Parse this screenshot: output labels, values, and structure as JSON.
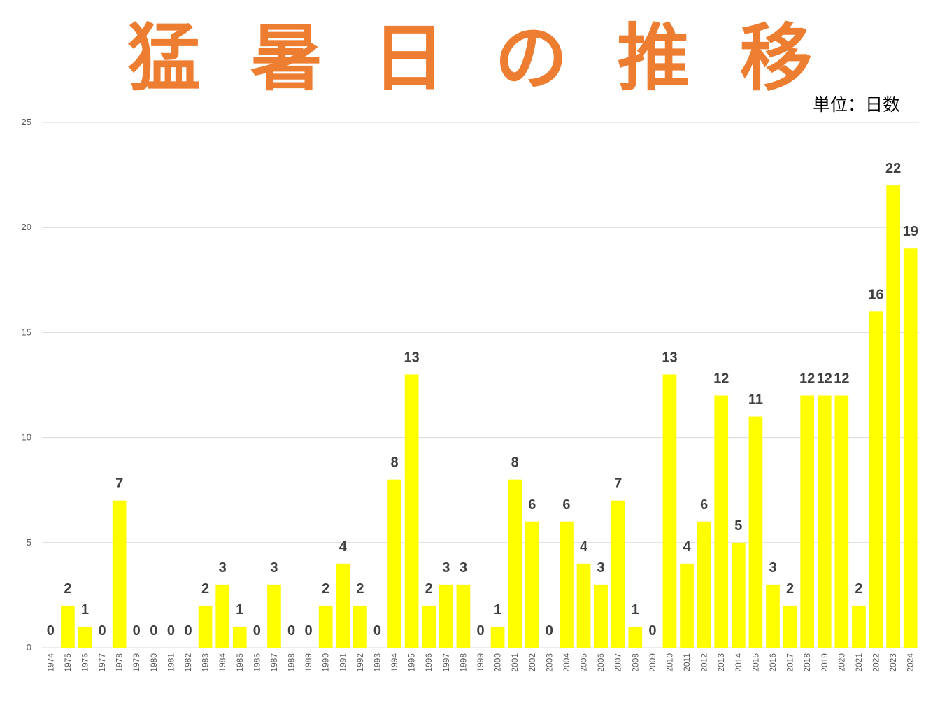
{
  "chart_data": {
    "type": "bar",
    "title": "猛暑日の推移",
    "unit_label": "単位：日数",
    "xlabel": "",
    "ylabel": "",
    "ylim": [
      0,
      25
    ],
    "yticks": [
      0,
      5,
      10,
      15,
      20,
      25
    ],
    "grid": true,
    "bar_color": "#FFFF00",
    "title_color": "#ED7D31",
    "categories": [
      "1974",
      "1975",
      "1976",
      "1977",
      "1978",
      "1979",
      "1980",
      "1981",
      "1982",
      "1983",
      "1984",
      "1985",
      "1986",
      "1987",
      "1988",
      "1989",
      "1990",
      "1991",
      "1992",
      "1993",
      "1994",
      "1995",
      "1996",
      "1997",
      "1998",
      "1999",
      "2000",
      "2001",
      "2002",
      "2003",
      "2004",
      "2005",
      "2006",
      "2007",
      "2008",
      "2009",
      "2010",
      "2011",
      "2012",
      "2013",
      "2014",
      "2015",
      "2016",
      "2017",
      "2018",
      "2019",
      "2020",
      "2021",
      "2022",
      "2023",
      "2024"
    ],
    "values": [
      0,
      2,
      1,
      0,
      7,
      0,
      0,
      0,
      0,
      2,
      3,
      1,
      0,
      3,
      0,
      0,
      2,
      4,
      2,
      0,
      8,
      13,
      2,
      3,
      3,
      0,
      1,
      8,
      6,
      0,
      6,
      4,
      3,
      7,
      1,
      0,
      13,
      4,
      6,
      12,
      5,
      11,
      3,
      2,
      12,
      12,
      12,
      2,
      16,
      22,
      19
    ]
  }
}
